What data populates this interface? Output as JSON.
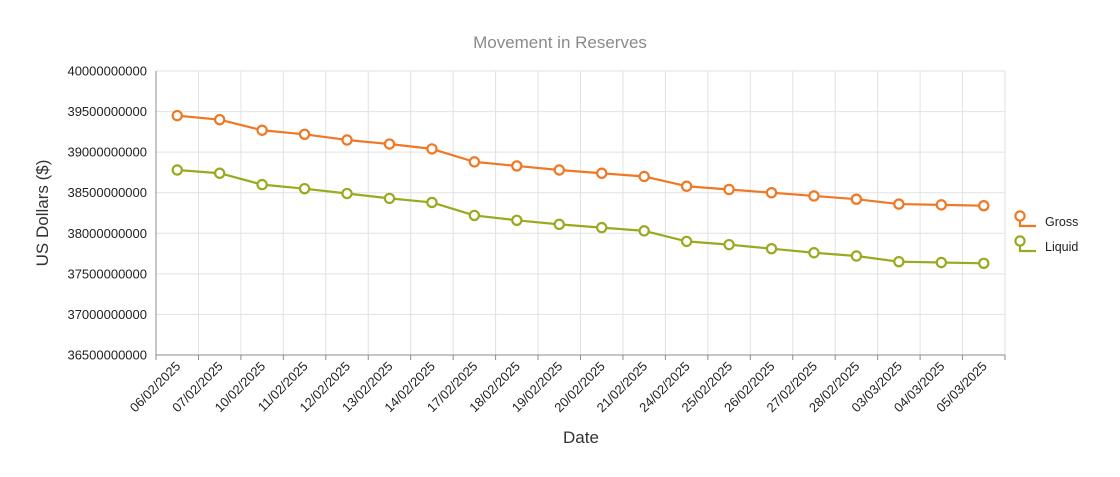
{
  "chart_data": {
    "type": "line",
    "title": "Movement in Reserves",
    "xlabel": "Date",
    "ylabel": "US Dollars ($)",
    "ylim": [
      36500000000,
      40000000000
    ],
    "yticks": [
      36500000000,
      37000000000,
      37500000000,
      38000000000,
      38500000000,
      39000000000,
      39500000000,
      40000000000
    ],
    "ytick_labels": [
      "36500000000",
      "37000000000",
      "37500000000",
      "38000000000",
      "38500000000",
      "39000000000",
      "39500000000",
      "40000000000"
    ],
    "grid": true,
    "legend_position": "right",
    "categories": [
      "06/02/2025",
      "07/02/2025",
      "10/02/2025",
      "11/02/2025",
      "12/02/2025",
      "13/02/2025",
      "14/02/2025",
      "17/02/2025",
      "18/02/2025",
      "19/02/2025",
      "20/02/2025",
      "21/02/2025",
      "24/02/2025",
      "25/02/2025",
      "26/02/2025",
      "27/02/2025",
      "28/02/2025",
      "03/03/2025",
      "04/03/2025",
      "05/03/2025"
    ],
    "series": [
      {
        "name": "Gross",
        "color": "#f07723",
        "values": [
          39450000000,
          39400000000,
          39270000000,
          39220000000,
          39150000000,
          39100000000,
          39040000000,
          38880000000,
          38830000000,
          38780000000,
          38740000000,
          38700000000,
          38580000000,
          38540000000,
          38500000000,
          38460000000,
          38420000000,
          38360000000,
          38350000000,
          38340000000
        ]
      },
      {
        "name": "Liquid",
        "color": "#9aaa1e",
        "values": [
          38780000000,
          38740000000,
          38600000000,
          38550000000,
          38490000000,
          38430000000,
          38380000000,
          38220000000,
          38160000000,
          38110000000,
          38070000000,
          38030000000,
          37900000000,
          37860000000,
          37810000000,
          37760000000,
          37720000000,
          37650000000,
          37640000000,
          37630000000
        ]
      }
    ]
  }
}
